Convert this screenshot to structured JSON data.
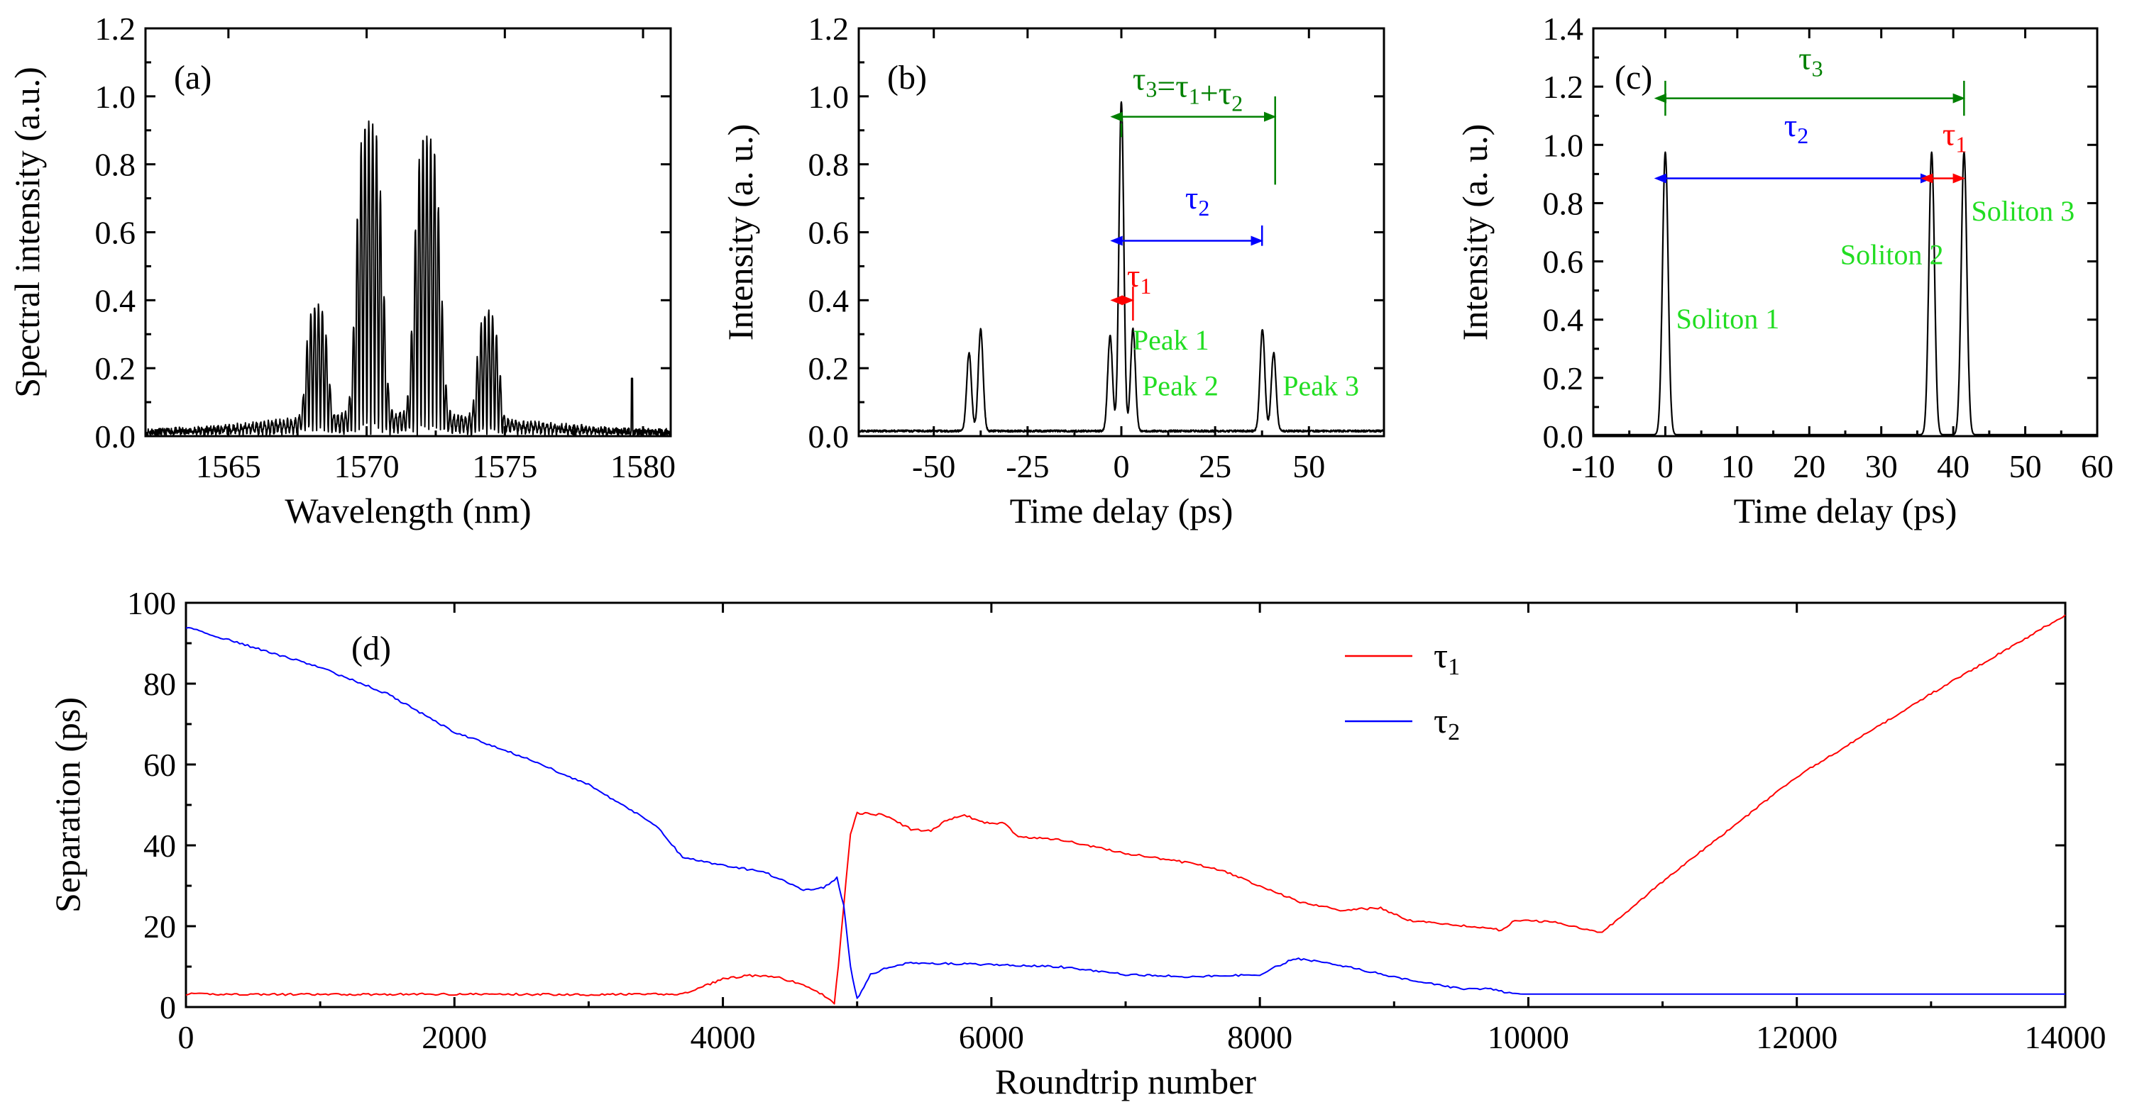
{
  "colors": {
    "black": "#000000",
    "red": "#ff0000",
    "blue": "#0000ff",
    "darkgreen": "#008000",
    "green": "#22dd22"
  },
  "chart_data": [
    {
      "id": "a",
      "type": "line",
      "panel_label": "(a)",
      "xlabel": "Wavelength (nm)",
      "ylabel": "Spectral intensity (a.u.)",
      "xlim": [
        1562,
        1581
      ],
      "ylim": [
        0,
        1.2
      ],
      "xticks": [
        1565,
        1570,
        1575,
        1580
      ],
      "yticks": [
        0.0,
        0.2,
        0.4,
        0.6,
        0.8,
        1.0,
        1.2
      ],
      "ytick_labels": [
        "0.0",
        "0.2",
        "0.4",
        "0.6",
        "0.8",
        "1.0",
        "1.2"
      ],
      "grid": false,
      "spectrum": {
        "center_nm": 1571.2,
        "fringe_period_nm": 0.14,
        "lobes": [
          {
            "center": 1570.1,
            "width": 0.55,
            "peak": 0.86
          },
          {
            "center": 1572.2,
            "width": 0.55,
            "peak": 0.81
          },
          {
            "center": 1568.2,
            "width": 0.45,
            "peak": 0.33
          },
          {
            "center": 1574.4,
            "width": 0.45,
            "peak": 0.31
          }
        ],
        "noise_floor": 0.02,
        "spike": {
          "x": 1579.6,
          "y": 0.17
        }
      }
    },
    {
      "id": "b",
      "type": "line",
      "panel_label": "(b)",
      "xlabel": "Time delay (ps)",
      "ylabel": "Intensity (a. u.)",
      "xlim": [
        -70,
        70
      ],
      "ylim": [
        0,
        1.2
      ],
      "xticks": [
        -50,
        -25,
        0,
        25,
        50
      ],
      "yticks": [
        0.0,
        0.2,
        0.4,
        0.6,
        0.8,
        1.0,
        1.2
      ],
      "ytick_labels": [
        "0.0",
        "0.2",
        "0.4",
        "0.6",
        "0.8",
        "1.0",
        "1.2"
      ],
      "grid": false,
      "peaks": [
        {
          "x": -40.6,
          "y": 0.23,
          "w": 0.9
        },
        {
          "x": -37.5,
          "y": 0.3,
          "w": 0.9
        },
        {
          "x": -3.0,
          "y": 0.28,
          "w": 0.9
        },
        {
          "x": 0.0,
          "y": 0.97,
          "w": 0.9
        },
        {
          "x": 3.1,
          "y": 0.3,
          "w": 0.9
        },
        {
          "x": 37.6,
          "y": 0.3,
          "w": 0.9
        },
        {
          "x": 40.6,
          "y": 0.23,
          "w": 0.9
        }
      ],
      "baseline": 0.015,
      "annotations": [
        {
          "text": "Peak 1",
          "x": 3.0,
          "y": 0.255,
          "color": "green"
        },
        {
          "text": "Peak 2",
          "x": 5.5,
          "y": 0.12,
          "color": "green"
        },
        {
          "text": "Peak 3",
          "x": 43.0,
          "y": 0.12,
          "color": "green"
        }
      ],
      "tau_labels": [
        {
          "base": "τ",
          "sub": "1",
          "x": 1.5,
          "y": 0.44,
          "color": "red"
        },
        {
          "base": "τ",
          "sub": "2",
          "x": 17.0,
          "y": 0.67,
          "color": "blue"
        },
        {
          "base": "τ",
          "sub": "3",
          "sup_expr": "=τ",
          "sub2": "1",
          "plus": "+τ",
          "sub3": "2",
          "x": 3.0,
          "y": 1.02,
          "color": "darkgreen"
        }
      ],
      "arrows": [
        {
          "x1": 0.0,
          "x2": 41.0,
          "y": 0.94,
          "color": "darkgreen",
          "ticks": [
            [
              0.0,
              0.88,
              0.92
            ],
            [
              41.0,
              0.74,
              1.0
            ]
          ]
        },
        {
          "x1": 0.0,
          "x2": 37.5,
          "y": 0.575,
          "color": "blue",
          "ticks": [
            [
              37.5,
              0.56,
              0.62
            ]
          ]
        },
        {
          "x1": 0.0,
          "x2": 3.1,
          "y": 0.4,
          "color": "red",
          "ticks": [
            [
              3.1,
              0.34,
              0.44
            ]
          ]
        }
      ]
    },
    {
      "id": "c",
      "type": "line",
      "panel_label": "(c)",
      "xlabel": "Time delay (ps)",
      "ylabel": "Intensity (a. u.)",
      "xlim": [
        -10,
        60
      ],
      "ylim": [
        0,
        1.4
      ],
      "xticks": [
        -10,
        0,
        10,
        20,
        30,
        40,
        50,
        60
      ],
      "yticks": [
        0.0,
        0.2,
        0.4,
        0.6,
        0.8,
        1.0,
        1.2,
        1.4
      ],
      "ytick_labels": [
        "0.0",
        "0.2",
        "0.4",
        "0.6",
        "0.8",
        "1.0",
        "1.2",
        "1.4"
      ],
      "grid": false,
      "peaks": [
        {
          "x": 0.0,
          "y": 0.97,
          "w": 0.55
        },
        {
          "x": 37.0,
          "y": 0.97,
          "w": 0.55
        },
        {
          "x": 41.5,
          "y": 0.97,
          "w": 0.55
        }
      ],
      "baseline": 0.005,
      "annotations": [
        {
          "text": "Soliton 1",
          "x": 1.5,
          "y": 0.37,
          "color": "green"
        },
        {
          "text": "Soliton 2",
          "x": 24.3,
          "y": 0.59,
          "color": "green"
        },
        {
          "text": "Soliton 3",
          "x": 42.5,
          "y": 0.74,
          "color": "green"
        }
      ],
      "tau_labels": [
        {
          "base": "τ",
          "sub": "3",
          "x": 18.5,
          "y": 1.26,
          "color": "darkgreen"
        },
        {
          "base": "τ",
          "sub": "2",
          "x": 16.5,
          "y": 1.03,
          "color": "blue"
        },
        {
          "base": "τ",
          "sub": "1",
          "x": 38.5,
          "y": 1.0,
          "color": "red"
        }
      ],
      "arrows": [
        {
          "x1": 0.0,
          "x2": 41.5,
          "y": 1.16,
          "color": "darkgreen",
          "ticks": [
            [
              0.0,
              1.1,
              1.22
            ],
            [
              41.5,
              1.1,
              1.22
            ]
          ]
        },
        {
          "x1": 0.0,
          "x2": 37.0,
          "y": 0.885,
          "color": "blue",
          "ticks": []
        },
        {
          "x1": 37.0,
          "x2": 41.5,
          "y": 0.885,
          "color": "red",
          "ticks": []
        }
      ]
    },
    {
      "id": "d",
      "type": "line",
      "panel_label": "(d)",
      "xlabel": "Roundtrip number",
      "ylabel": "Separation (ps)",
      "xlim": [
        0,
        14000
      ],
      "ylim": [
        0,
        100
      ],
      "xticks": [
        0,
        2000,
        4000,
        6000,
        8000,
        10000,
        12000,
        14000
      ],
      "yticks": [
        0,
        20,
        40,
        60,
        80,
        100
      ],
      "ytick_labels": [
        "0",
        "20",
        "40",
        "60",
        "80",
        "100"
      ],
      "grid": false,
      "legend_position": "top-right",
      "series": [
        {
          "name": "τ",
          "sub": "1",
          "color": "red",
          "points": [
            [
              0,
              3.2
            ],
            [
              1000,
              3.1
            ],
            [
              2000,
              3.2
            ],
            [
              3000,
              3.1
            ],
            [
              3700,
              3.2
            ],
            [
              3850,
              5
            ],
            [
              4000,
              7
            ],
            [
              4200,
              7.8
            ],
            [
              4400,
              7.4
            ],
            [
              4600,
              5.5
            ],
            [
              4800,
              2
            ],
            [
              4830,
              1
            ],
            [
              4860,
              10
            ],
            [
              4900,
              25
            ],
            [
              4950,
              43
            ],
            [
              5000,
              48
            ],
            [
              5200,
              47.5
            ],
            [
              5400,
              44
            ],
            [
              5550,
              43.5
            ],
            [
              5650,
              46
            ],
            [
              5800,
              47.5
            ],
            [
              5950,
              45.5
            ],
            [
              6100,
              45.5
            ],
            [
              6200,
              42
            ],
            [
              6500,
              41.5
            ],
            [
              7000,
              38
            ],
            [
              7500,
              35.5
            ],
            [
              7700,
              34
            ],
            [
              8000,
              30
            ],
            [
              8300,
              26
            ],
            [
              8600,
              24
            ],
            [
              8900,
              24.5
            ],
            [
              9100,
              21.5
            ],
            [
              9400,
              20.5
            ],
            [
              9700,
              19.5
            ],
            [
              9800,
              19
            ],
            [
              9900,
              21.5
            ],
            [
              10200,
              21
            ],
            [
              10400,
              19.5
            ],
            [
              10550,
              18.5
            ],
            [
              11000,
              31
            ],
            [
              12000,
              57
            ],
            [
              13000,
              77.5
            ],
            [
              14000,
              97
            ]
          ]
        },
        {
          "name": "τ",
          "sub": "2",
          "color": "blue",
          "points": [
            [
              0,
              94
            ],
            [
              500,
              89
            ],
            [
              1000,
              84
            ],
            [
              1500,
              77.5
            ],
            [
              2000,
              68
            ],
            [
              2500,
              62
            ],
            [
              3000,
              55
            ],
            [
              3500,
              45
            ],
            [
              3700,
              37
            ],
            [
              4000,
              35
            ],
            [
              4300,
              33.5
            ],
            [
              4600,
              29
            ],
            [
              4750,
              29.5
            ],
            [
              4850,
              32
            ],
            [
              4900,
              25
            ],
            [
              4950,
              10
            ],
            [
              5000,
              2
            ],
            [
              5050,
              5
            ],
            [
              5100,
              8
            ],
            [
              5200,
              9.5
            ],
            [
              5400,
              11
            ],
            [
              5600,
              10.8
            ],
            [
              6000,
              10.5
            ],
            [
              6500,
              10
            ],
            [
              7000,
              8
            ],
            [
              7500,
              7.5
            ],
            [
              8000,
              8
            ],
            [
              8250,
              12
            ],
            [
              8500,
              11
            ],
            [
              9000,
              7.5
            ],
            [
              9500,
              4.5
            ],
            [
              9700,
              4.5
            ],
            [
              9900,
              3.2
            ],
            [
              10500,
              3.2
            ],
            [
              14000,
              3.2
            ]
          ]
        }
      ]
    }
  ]
}
